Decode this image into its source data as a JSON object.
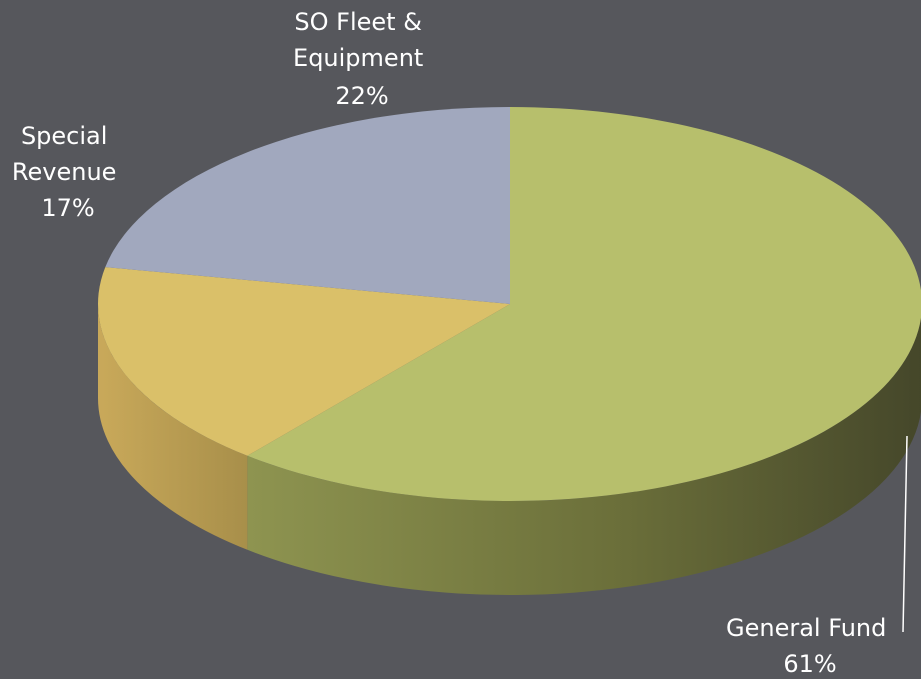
{
  "chart_data": {
    "type": "pie",
    "style": "3d",
    "title": "",
    "slices": [
      {
        "name": "General Fund",
        "label_lines": [
          "General Fund"
        ],
        "value": 61,
        "value_label": "61%",
        "color": "#b7bf6c"
      },
      {
        "name": "Special Revenue",
        "label_lines": [
          "Special",
          "Revenue"
        ],
        "value": 17,
        "value_label": "17%",
        "color": "#dac069"
      },
      {
        "name": "SO Fleet & Equipment",
        "label_lines": [
          "SO Fleet &",
          "Equipment"
        ],
        "value": 22,
        "value_label": "22%",
        "color": "#a1a8be"
      }
    ],
    "legend": "none",
    "label_color": "#ffffff",
    "background": "#56575c"
  }
}
